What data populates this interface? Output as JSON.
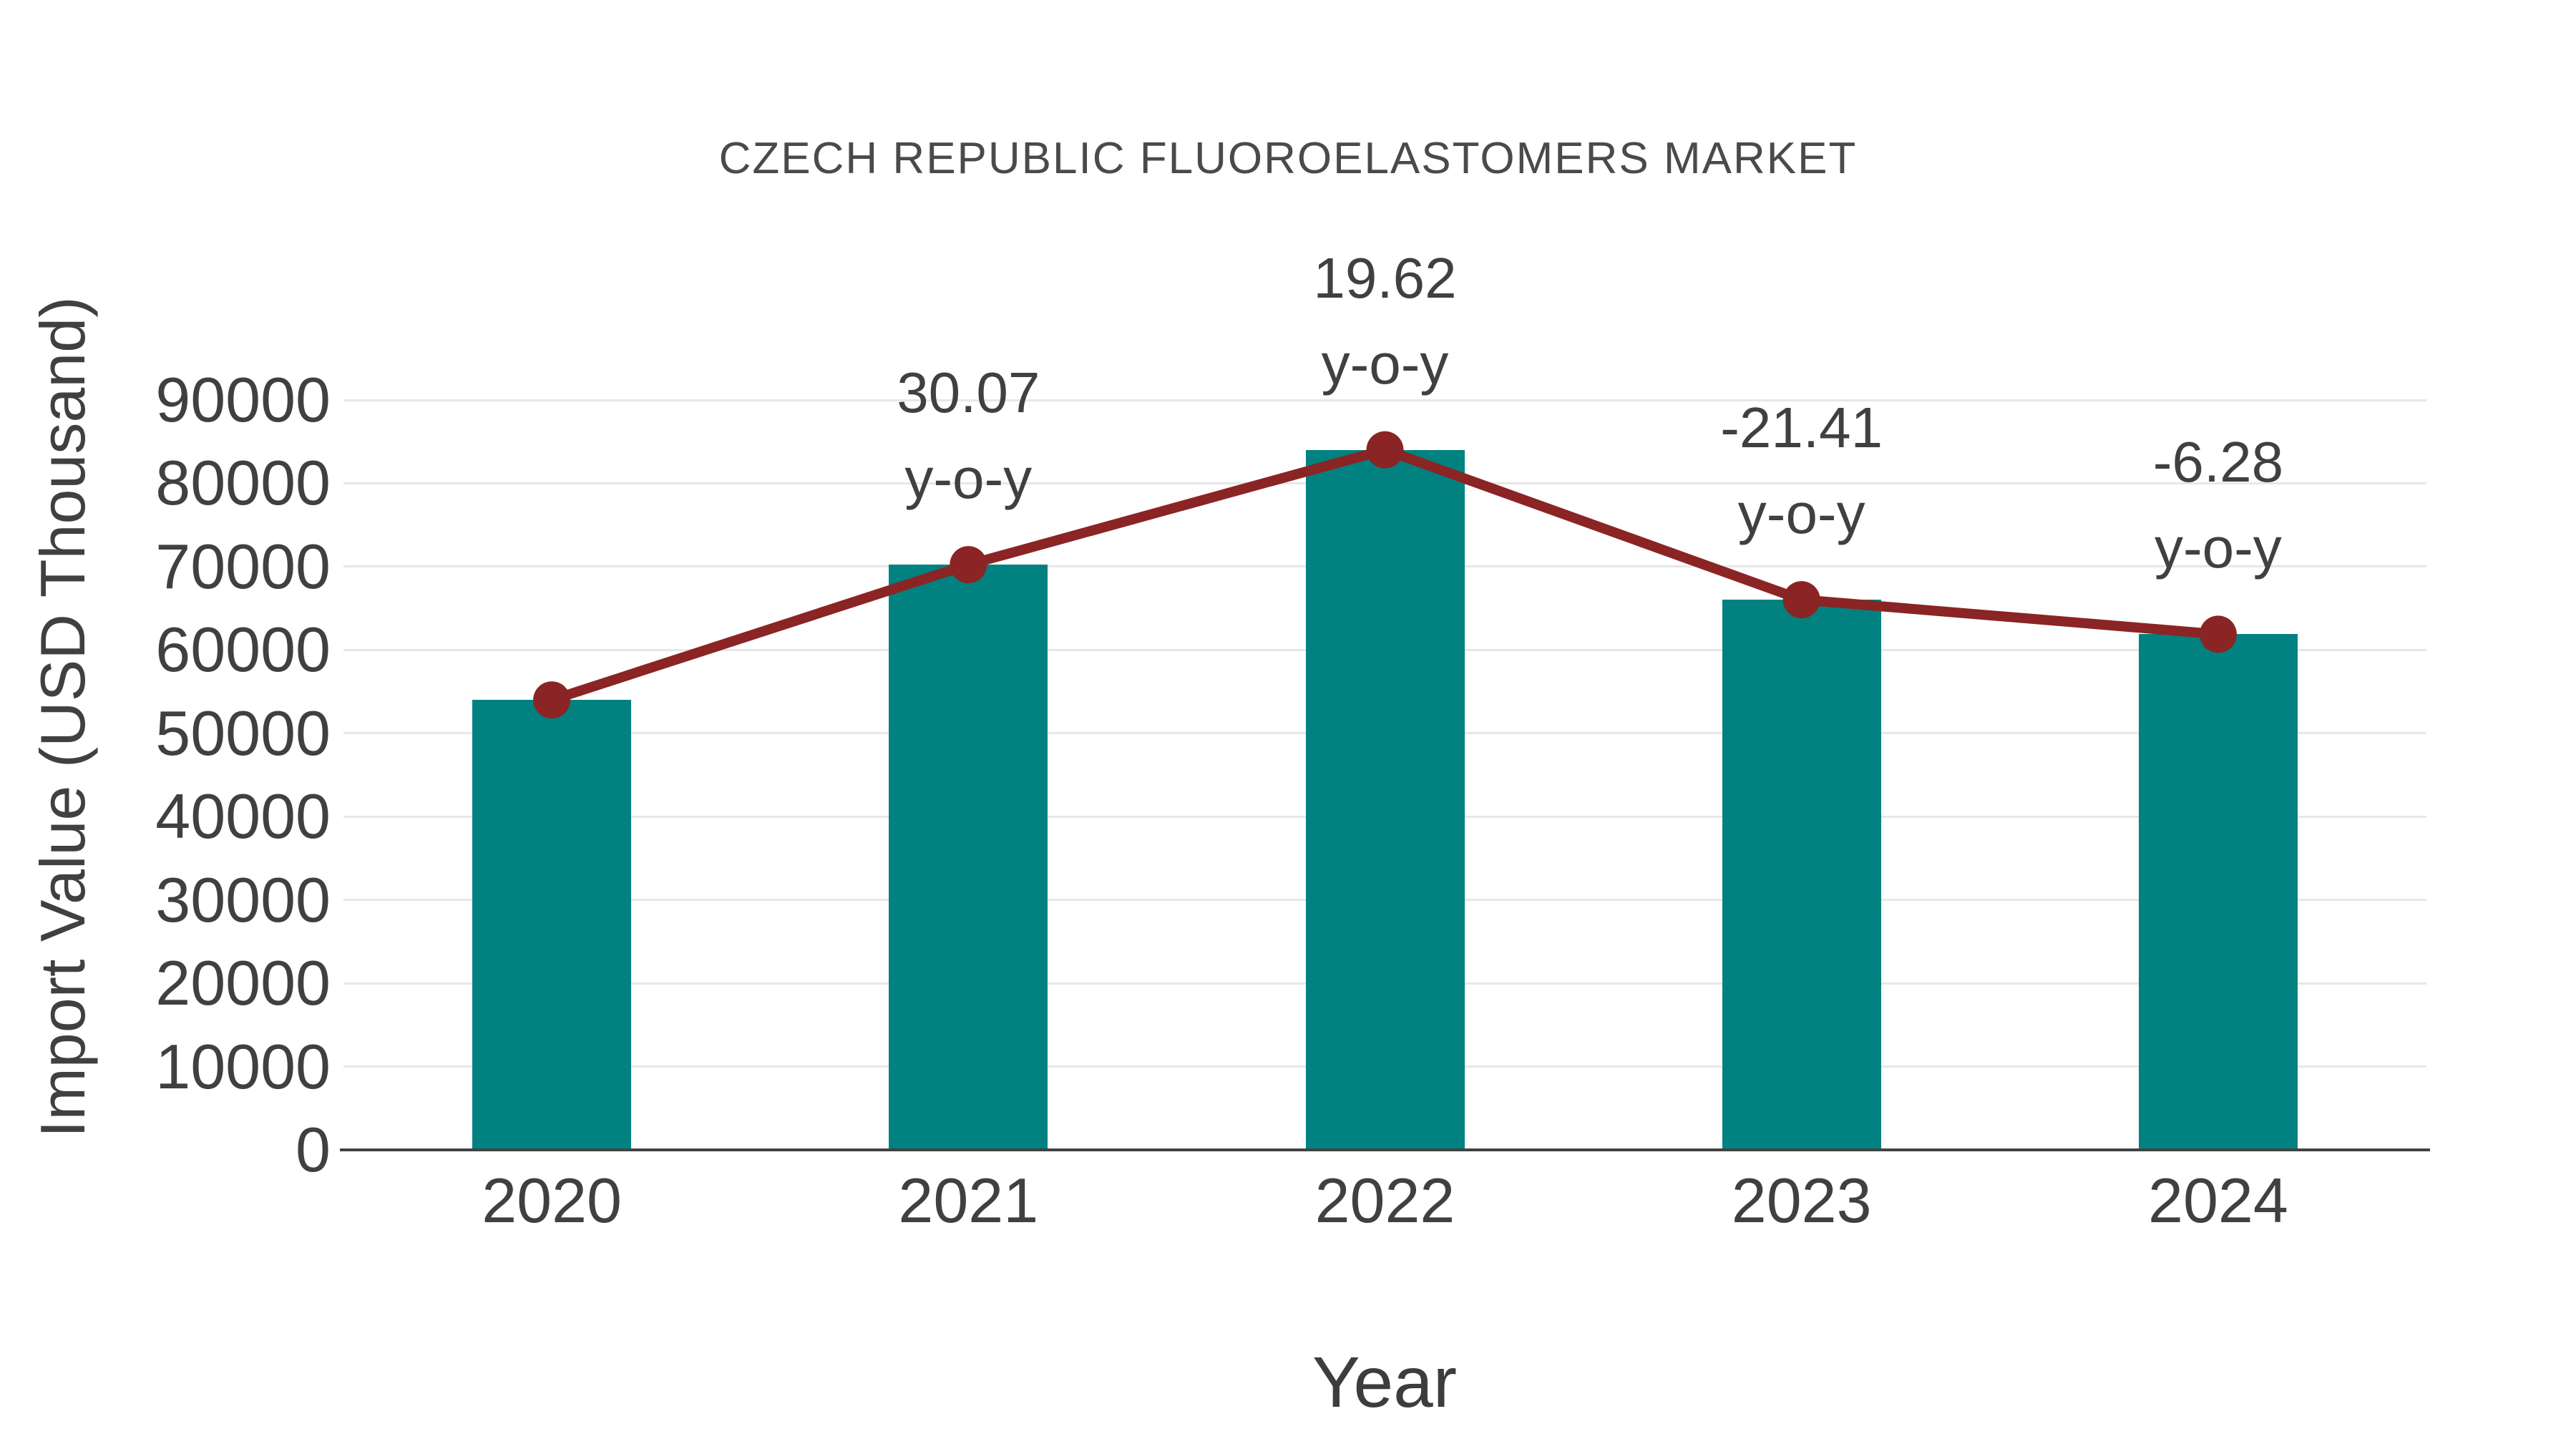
{
  "chart_data": {
    "type": "bar",
    "title": "CZECH REPUBLIC FLUOROELASTOMERS MARKET",
    "xlabel": "Year",
    "ylabel": "Import Value (USD Thousand)",
    "categories": [
      "2020",
      "2021",
      "2022",
      "2023",
      "2024"
    ],
    "series": [
      {
        "name": "Import Value bars",
        "type": "bar",
        "color": "#028181",
        "values": [
          54000,
          70238,
          84018,
          66031,
          61884
        ]
      },
      {
        "name": "Import Value trend line",
        "type": "line",
        "color": "#8b2424",
        "values": [
          54000,
          70238,
          84018,
          66031,
          61884
        ]
      }
    ],
    "annotations": [
      {
        "category": "2021",
        "value_label": "30.07",
        "suffix_label": "y-o-y"
      },
      {
        "category": "2022",
        "value_label": "19.62",
        "suffix_label": "y-o-y"
      },
      {
        "category": "2023",
        "value_label": "-21.41",
        "suffix_label": "y-o-y"
      },
      {
        "category": "2024",
        "value_label": "-6.28",
        "suffix_label": "y-o-y"
      }
    ],
    "yticks": [
      0,
      10000,
      20000,
      30000,
      40000,
      50000,
      60000,
      70000,
      80000,
      90000
    ],
    "ylim": [
      0,
      90000
    ],
    "grid": true,
    "legend_position": "none",
    "colors": {
      "bar": "#028181",
      "line": "#8b2424",
      "tick_text": "#404040",
      "title_text": "#4a4a4a",
      "gridline": "#e7e7e7",
      "axis_line": "#424242",
      "background": "#ffffff"
    }
  }
}
